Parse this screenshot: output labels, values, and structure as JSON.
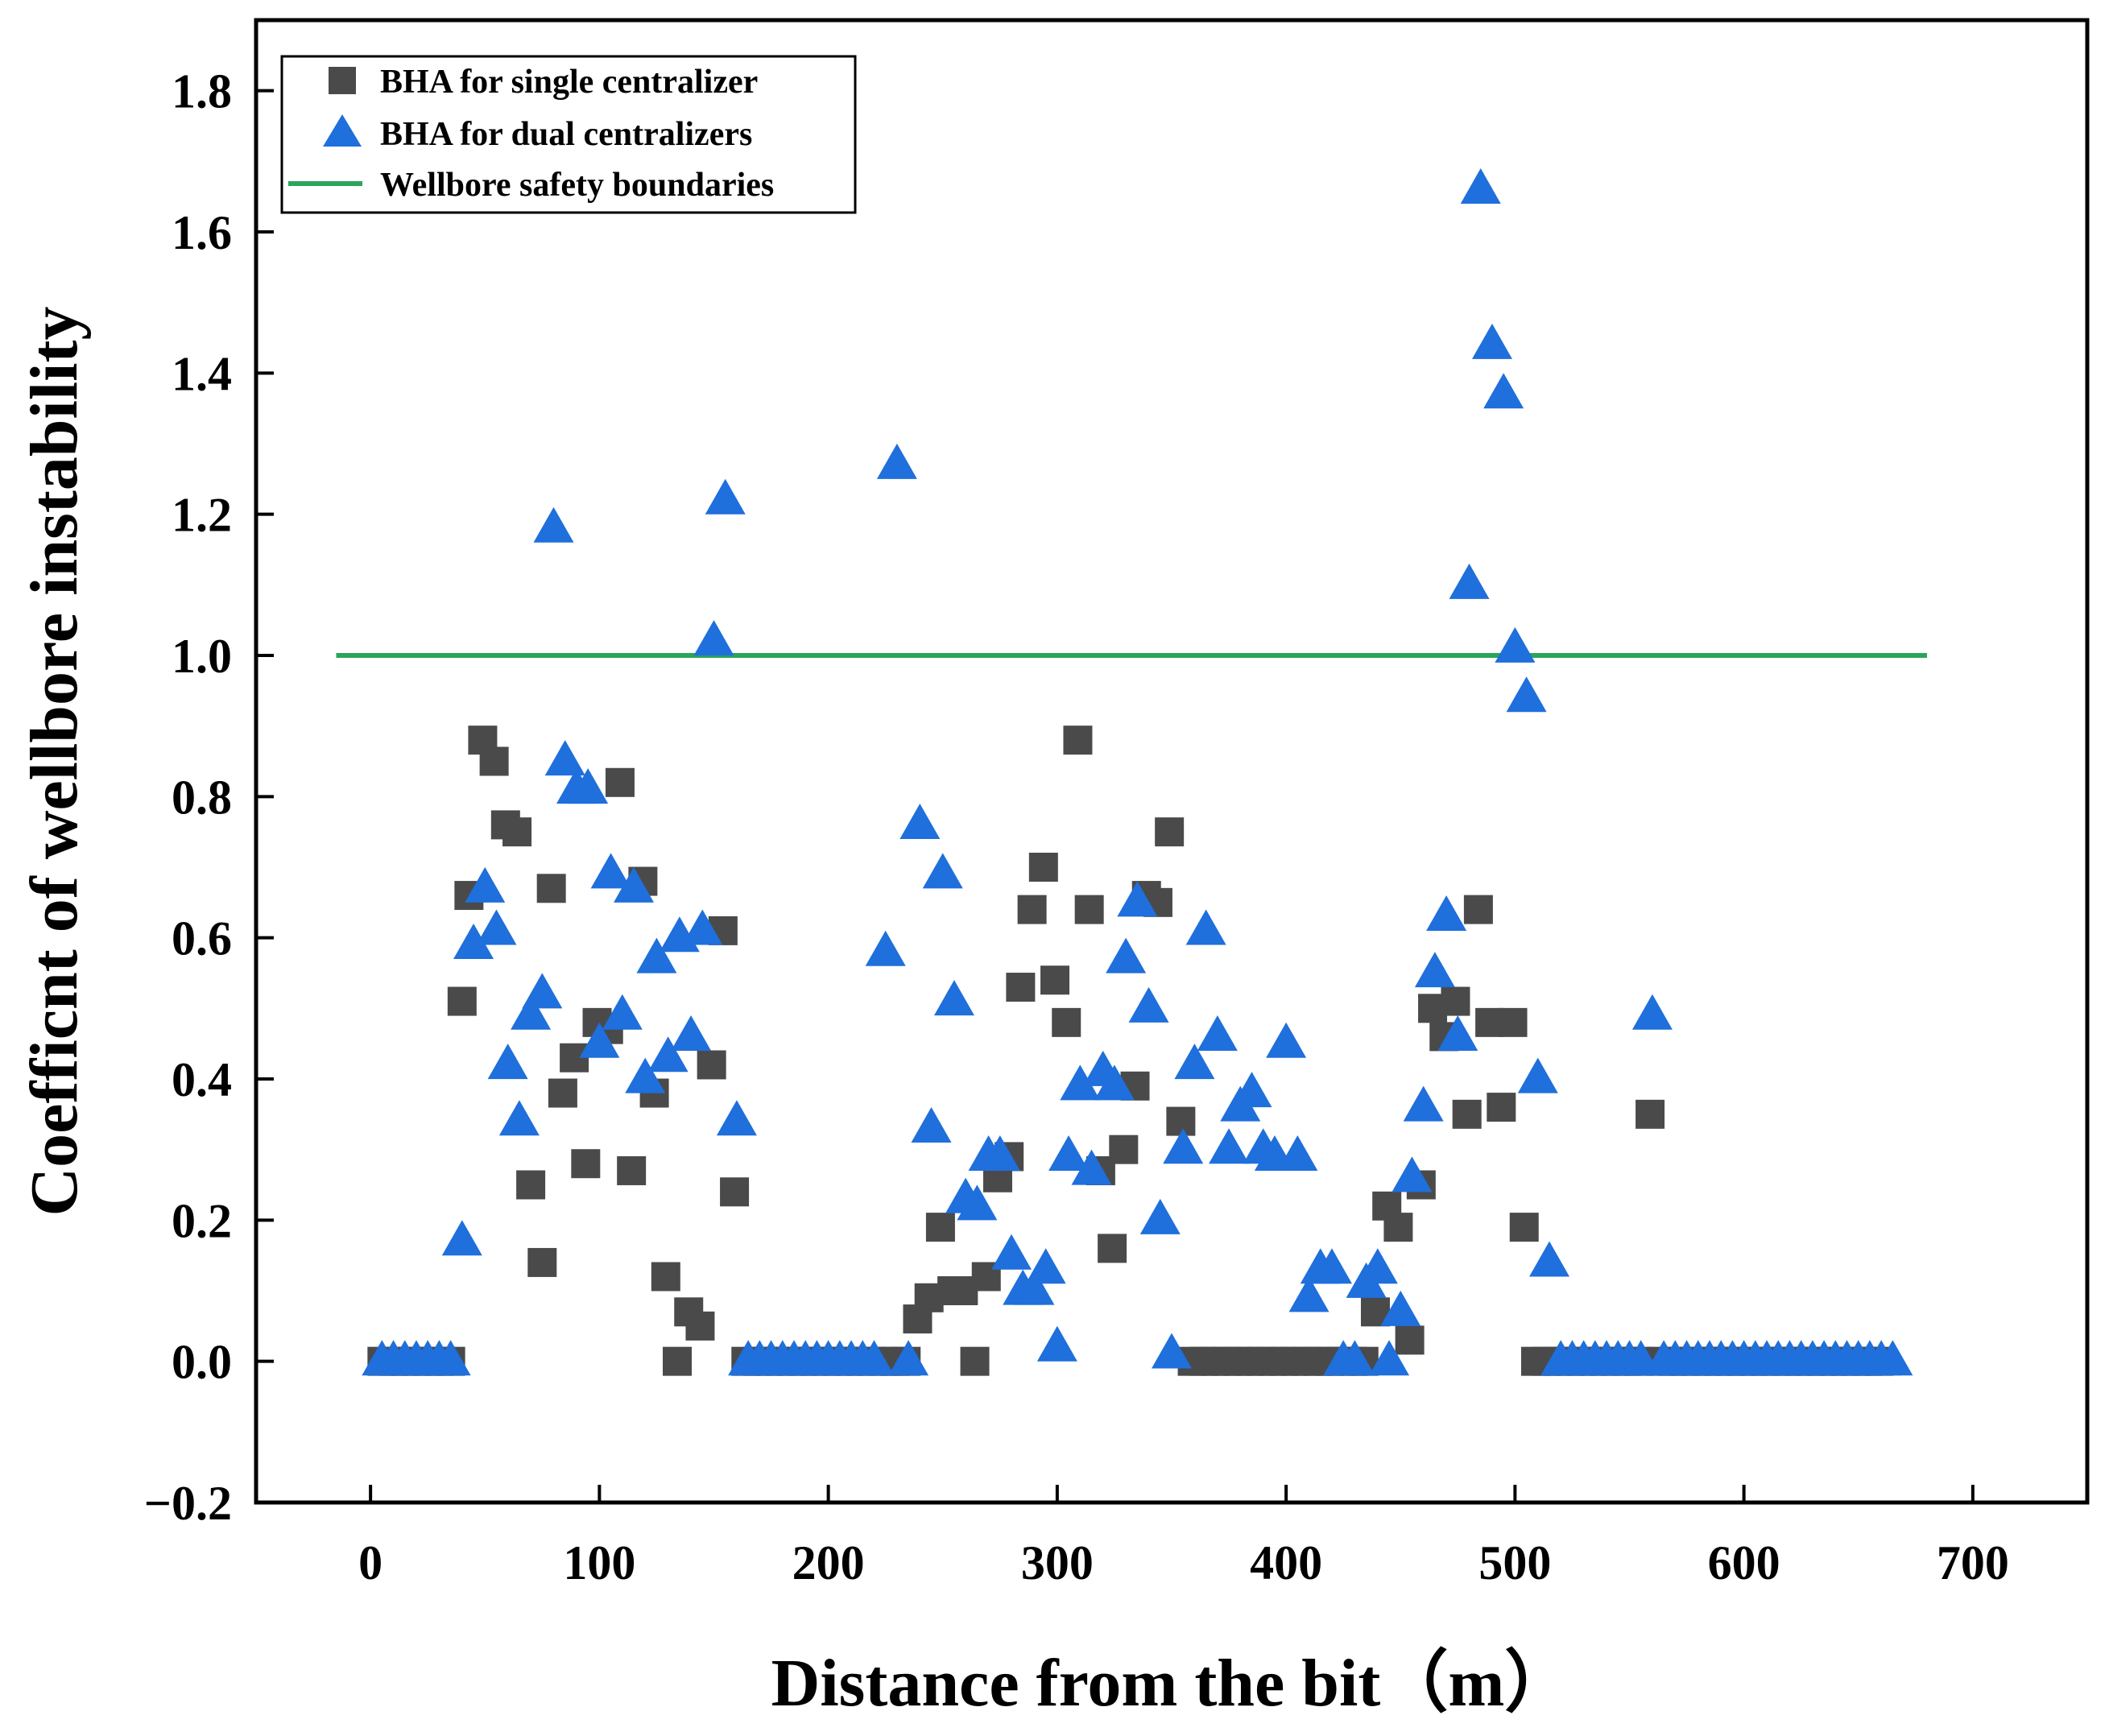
{
  "chart_data": {
    "type": "scatter",
    "title": "",
    "xlabel": "Distance from the bit（m）",
    "ylabel": "Coefficnt of wellbore instability",
    "xlim": [
      -50,
      750
    ],
    "ylim": [
      -0.2,
      1.9
    ],
    "xticks": [
      0,
      100,
      200,
      300,
      400,
      500,
      600,
      700
    ],
    "yticks": [
      -0.2,
      0.0,
      0.2,
      0.4,
      0.6,
      0.8,
      1.0,
      1.2,
      1.4,
      1.6,
      1.8
    ],
    "xtick_labels": [
      "0",
      "100",
      "200",
      "300",
      "400",
      "500",
      "600",
      "700"
    ],
    "ytick_labels": [
      "−0.2",
      "0.0",
      "0.2",
      "0.4",
      "0.6",
      "0.8",
      "1.0",
      "1.2",
      "1.4",
      "1.6",
      "1.8"
    ],
    "grid": false,
    "legend_position": "top-left",
    "series": [
      {
        "name": "BHA for single centralizer",
        "marker": "square",
        "color": "#4a4a4a",
        "points": [
          [
            5,
            0
          ],
          [
            10,
            0
          ],
          [
            15,
            0
          ],
          [
            20,
            0
          ],
          [
            25,
            0
          ],
          [
            30,
            0
          ],
          [
            35,
            0
          ],
          [
            40,
            0.51
          ],
          [
            43,
            0.66
          ],
          [
            49,
            0.88
          ],
          [
            54,
            0.85
          ],
          [
            59,
            0.76
          ],
          [
            64,
            0.75
          ],
          [
            70,
            0.25
          ],
          [
            75,
            0.14
          ],
          [
            79,
            0.67
          ],
          [
            84,
            0.38
          ],
          [
            89,
            0.43
          ],
          [
            94,
            0.28
          ],
          [
            99,
            0.48
          ],
          [
            104,
            0.47
          ],
          [
            109,
            0.82
          ],
          [
            114,
            0.27
          ],
          [
            119,
            0.68
          ],
          [
            124,
            0.38
          ],
          [
            129,
            0.12
          ],
          [
            134,
            0.0
          ],
          [
            139,
            0.07
          ],
          [
            144,
            0.05
          ],
          [
            149,
            0.42
          ],
          [
            154,
            0.61
          ],
          [
            159,
            0.24
          ],
          [
            164,
            0
          ],
          [
            169,
            0
          ],
          [
            174,
            0
          ],
          [
            179,
            0
          ],
          [
            184,
            0
          ],
          [
            189,
            0
          ],
          [
            194,
            0
          ],
          [
            199,
            0
          ],
          [
            204,
            0
          ],
          [
            209,
            0
          ],
          [
            214,
            0
          ],
          [
            219,
            0
          ],
          [
            224,
            0
          ],
          [
            229,
            0
          ],
          [
            234,
            0
          ],
          [
            239,
            0.06
          ],
          [
            244,
            0.09
          ],
          [
            249,
            0.19
          ],
          [
            254,
            0.1
          ],
          [
            259,
            0.1
          ],
          [
            264,
            0.0
          ],
          [
            269,
            0.12
          ],
          [
            274,
            0.26
          ],
          [
            279,
            0.29
          ],
          [
            284,
            0.53
          ],
          [
            289,
            0.64
          ],
          [
            294,
            0.7
          ],
          [
            299,
            0.54
          ],
          [
            304,
            0.48
          ],
          [
            309,
            0.88
          ],
          [
            314,
            0.64
          ],
          [
            319,
            0.27
          ],
          [
            324,
            0.16
          ],
          [
            329,
            0.3
          ],
          [
            334,
            0.39
          ],
          [
            339,
            0.66
          ],
          [
            344,
            0.65
          ],
          [
            349,
            0.75
          ],
          [
            354,
            0.34
          ],
          [
            359,
            0
          ],
          [
            364,
            0
          ],
          [
            369,
            0
          ],
          [
            374,
            0
          ],
          [
            379,
            0
          ],
          [
            384,
            0
          ],
          [
            389,
            0
          ],
          [
            394,
            0
          ],
          [
            399,
            0
          ],
          [
            404,
            0
          ],
          [
            409,
            0
          ],
          [
            414,
            0
          ],
          [
            419,
            0
          ],
          [
            424,
            0
          ],
          [
            429,
            0
          ],
          [
            434,
            0
          ],
          [
            439,
            0.07
          ],
          [
            444,
            0.22
          ],
          [
            449,
            0.19
          ],
          [
            454,
            0.03
          ],
          [
            459,
            0.25
          ],
          [
            464,
            0.5
          ],
          [
            469,
            0.46
          ],
          [
            474,
            0.51
          ],
          [
            479,
            0.35
          ],
          [
            484,
            0.64
          ],
          [
            489,
            0.48
          ],
          [
            494,
            0.36
          ],
          [
            499,
            0.48
          ],
          [
            504,
            0.19
          ],
          [
            509,
            0
          ],
          [
            514,
            0
          ],
          [
            519,
            0
          ],
          [
            524,
            0
          ],
          [
            529,
            0
          ],
          [
            534,
            0
          ],
          [
            539,
            0
          ],
          [
            544,
            0
          ],
          [
            549,
            0
          ],
          [
            554,
            0
          ],
          [
            559,
            0.35
          ],
          [
            564,
            0
          ],
          [
            569,
            0
          ],
          [
            574,
            0
          ],
          [
            579,
            0
          ],
          [
            584,
            0
          ],
          [
            589,
            0
          ],
          [
            594,
            0
          ],
          [
            599,
            0
          ],
          [
            604,
            0
          ],
          [
            609,
            0
          ],
          [
            614,
            0
          ],
          [
            619,
            0
          ],
          [
            624,
            0
          ],
          [
            629,
            0
          ],
          [
            634,
            0
          ],
          [
            639,
            0
          ],
          [
            644,
            0
          ],
          [
            649,
            0
          ],
          [
            654,
            0
          ],
          [
            659,
            0
          ]
        ]
      },
      {
        "name": "BHA for dual centralizers",
        "marker": "triangle",
        "color": "#1f6fdc",
        "points": [
          [
            5,
            0
          ],
          [
            10,
            0
          ],
          [
            15,
            0
          ],
          [
            20,
            0
          ],
          [
            25,
            0
          ],
          [
            30,
            0
          ],
          [
            35,
            0
          ],
          [
            40,
            0.17
          ],
          [
            45,
            0.59
          ],
          [
            50,
            0.67
          ],
          [
            55,
            0.61
          ],
          [
            60,
            0.42
          ],
          [
            65,
            0.34
          ],
          [
            70,
            0.49
          ],
          [
            75,
            0.52
          ],
          [
            80,
            1.18
          ],
          [
            85,
            0.85
          ],
          [
            90,
            0.81
          ],
          [
            95,
            0.81
          ],
          [
            100,
            0.45
          ],
          [
            105,
            0.69
          ],
          [
            110,
            0.49
          ],
          [
            115,
            0.67
          ],
          [
            120,
            0.4
          ],
          [
            125,
            0.57
          ],
          [
            130,
            0.43
          ],
          [
            135,
            0.6
          ],
          [
            140,
            0.46
          ],
          [
            145,
            0.61
          ],
          [
            150,
            1.02
          ],
          [
            155,
            1.22
          ],
          [
            160,
            0.34
          ],
          [
            165,
            0
          ],
          [
            170,
            0
          ],
          [
            175,
            0
          ],
          [
            180,
            0
          ],
          [
            185,
            0
          ],
          [
            190,
            0
          ],
          [
            195,
            0
          ],
          [
            200,
            0
          ],
          [
            205,
            0
          ],
          [
            210,
            0
          ],
          [
            215,
            0
          ],
          [
            220,
            0
          ],
          [
            225,
            0.58
          ],
          [
            230,
            1.27
          ],
          [
            235,
            0.0
          ],
          [
            240,
            0.76
          ],
          [
            245,
            0.33
          ],
          [
            250,
            0.69
          ],
          [
            255,
            0.51
          ],
          [
            260,
            0.23
          ],
          [
            265,
            0.22
          ],
          [
            270,
            0.29
          ],
          [
            275,
            0.29
          ],
          [
            280,
            0.15
          ],
          [
            285,
            0.1
          ],
          [
            290,
            0.1
          ],
          [
            295,
            0.13
          ],
          [
            300,
            0.02
          ],
          [
            305,
            0.29
          ],
          [
            310,
            0.39
          ],
          [
            315,
            0.27
          ],
          [
            320,
            0.41
          ],
          [
            325,
            0.39
          ],
          [
            330,
            0.57
          ],
          [
            335,
            0.65
          ],
          [
            340,
            0.5
          ],
          [
            345,
            0.2
          ],
          [
            350,
            0.01
          ],
          [
            355,
            0.3
          ],
          [
            360,
            0.42
          ],
          [
            365,
            0.61
          ],
          [
            370,
            0.46
          ],
          [
            375,
            0.3
          ],
          [
            380,
            0.36
          ],
          [
            385,
            0.38
          ],
          [
            390,
            0.3
          ],
          [
            395,
            0.29
          ],
          [
            400,
            0.45
          ],
          [
            405,
            0.29
          ],
          [
            410,
            0.09
          ],
          [
            415,
            0.13
          ],
          [
            420,
            0.13
          ],
          [
            425,
            0.0
          ],
          [
            430,
            0.0
          ],
          [
            435,
            0.11
          ],
          [
            440,
            0.13
          ],
          [
            445,
            0.0
          ],
          [
            450,
            0.07
          ],
          [
            455,
            0.26
          ],
          [
            460,
            0.36
          ],
          [
            465,
            0.55
          ],
          [
            470,
            0.63
          ],
          [
            475,
            0.46
          ],
          [
            480,
            1.1
          ],
          [
            485,
            1.66
          ],
          [
            490,
            1.44
          ],
          [
            495,
            1.37
          ],
          [
            500,
            1.01
          ],
          [
            505,
            0.94
          ],
          [
            510,
            0.4
          ],
          [
            515,
            0.14
          ],
          [
            520,
            0
          ],
          [
            525,
            0
          ],
          [
            530,
            0
          ],
          [
            535,
            0
          ],
          [
            540,
            0
          ],
          [
            545,
            0
          ],
          [
            550,
            0
          ],
          [
            555,
            0
          ],
          [
            560,
            0.49
          ],
          [
            565,
            0
          ],
          [
            570,
            0
          ],
          [
            575,
            0
          ],
          [
            580,
            0
          ],
          [
            585,
            0
          ],
          [
            590,
            0
          ],
          [
            595,
            0
          ],
          [
            600,
            0
          ],
          [
            605,
            0
          ],
          [
            610,
            0
          ],
          [
            615,
            0
          ],
          [
            620,
            0
          ],
          [
            625,
            0
          ],
          [
            630,
            0
          ],
          [
            635,
            0
          ],
          [
            640,
            0
          ],
          [
            645,
            0
          ],
          [
            650,
            0
          ],
          [
            655,
            0
          ],
          [
            660,
            0
          ],
          [
            665,
            0
          ]
        ]
      },
      {
        "name": "Wellbore safety boundaries",
        "marker": "line",
        "color": "#2aa55a",
        "x": [
          -15,
          680
        ],
        "y": [
          1.0,
          1.0
        ]
      }
    ]
  }
}
